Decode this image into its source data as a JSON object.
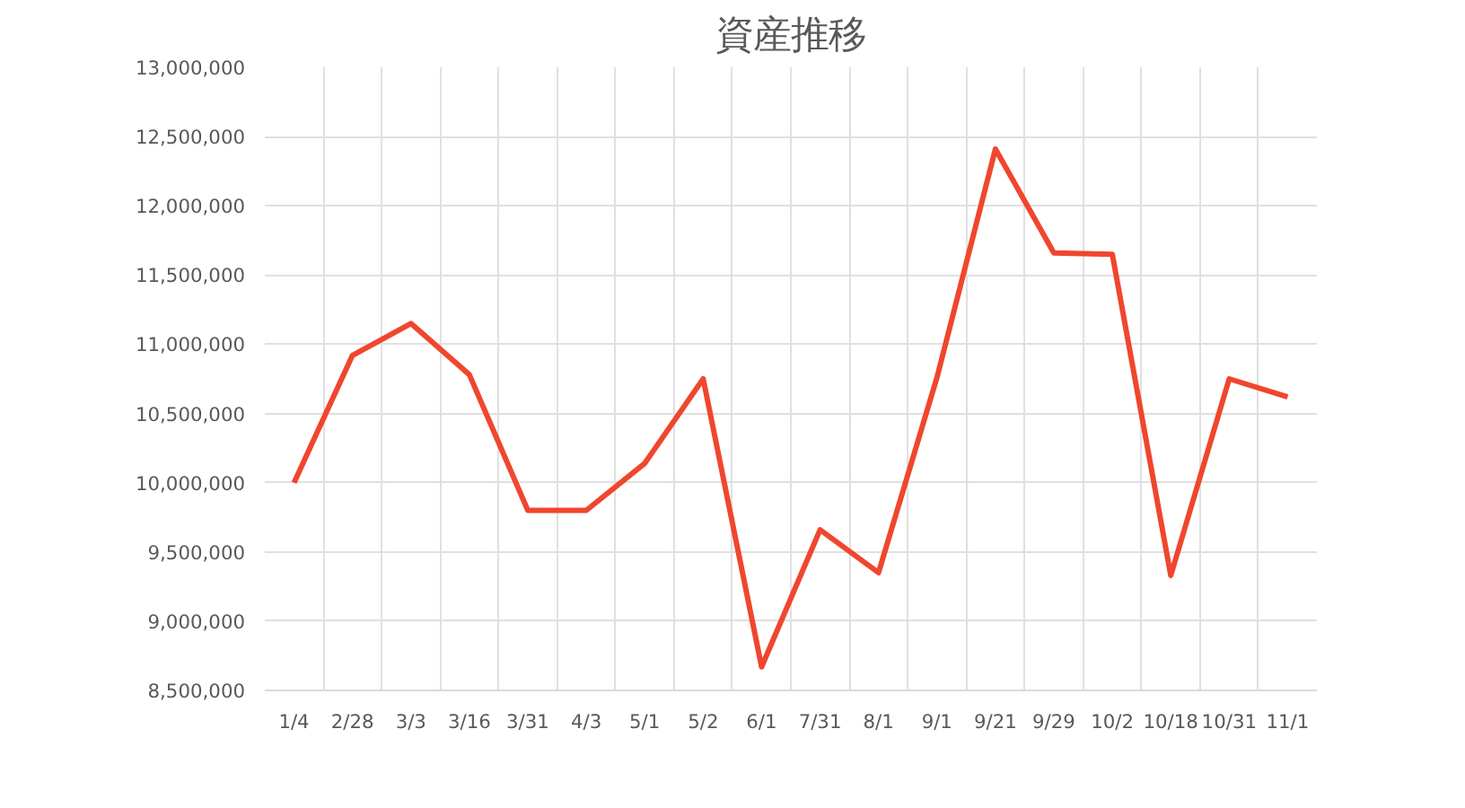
{
  "chart_data": {
    "type": "line",
    "title": "資産推移",
    "categories": [
      "1/4",
      "2/28",
      "3/3",
      "3/16",
      "3/31",
      "4/3",
      "5/1",
      "5/2",
      "6/1",
      "7/31",
      "8/1",
      "9/1",
      "9/21",
      "9/29",
      "10/2",
      "10/18",
      "10/31",
      "11/1"
    ],
    "series": [
      {
        "color": "#f0462e",
        "values": [
          10000000,
          10920000,
          11150000,
          10780000,
          9800000,
          9800000,
          10140000,
          10750000,
          8670000,
          9660000,
          9350000,
          10760000,
          12410000,
          11660000,
          11650000,
          9330000,
          10750000,
          10620000
        ]
      }
    ],
    "ylim": [
      8500000,
      13000000
    ],
    "yticks": [
      {
        "value": 8500000,
        "label": "8,500,000"
      },
      {
        "value": 9000000,
        "label": "9,000,000"
      },
      {
        "value": 9500000,
        "label": "9,500,000"
      },
      {
        "value": 10000000,
        "label": "10,000,000"
      },
      {
        "value": 10500000,
        "label": "10,500,000"
      },
      {
        "value": 11000000,
        "label": "11,000,000"
      },
      {
        "value": 11500000,
        "label": "11,500,000"
      },
      {
        "value": 12000000,
        "label": "12,000,000"
      },
      {
        "value": 12500000,
        "label": "12,500,000"
      },
      {
        "value": 13000000,
        "label": "13,000,000"
      }
    ],
    "grid": true,
    "marker": "none",
    "line_style": "solid"
  }
}
